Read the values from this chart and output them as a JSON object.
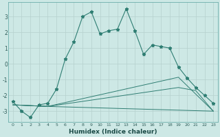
{
  "xlabel": "Humidex (Indice chaleur)",
  "background_color": "#cde8e5",
  "grid_color": "#b5d0cd",
  "line_color": "#2e7d72",
  "xlim": [
    -0.5,
    23.5
  ],
  "ylim": [
    -3.7,
    3.9
  ],
  "yticks": [
    -3,
    -2,
    -1,
    0,
    1,
    2,
    3
  ],
  "xticks": [
    0,
    1,
    2,
    3,
    4,
    5,
    6,
    7,
    8,
    9,
    10,
    11,
    12,
    13,
    14,
    15,
    16,
    17,
    18,
    19,
    20,
    21,
    22,
    23
  ],
  "line1_x": [
    0,
    1,
    2,
    3,
    4,
    5,
    6,
    7,
    8,
    9,
    10,
    11,
    12,
    13,
    14,
    15,
    16,
    17,
    18,
    19,
    20,
    21,
    22,
    23
  ],
  "line1_y": [
    -2.4,
    -3.0,
    -3.4,
    -2.6,
    -2.5,
    -1.6,
    0.3,
    1.4,
    3.0,
    3.3,
    1.9,
    2.1,
    2.2,
    3.5,
    2.1,
    0.6,
    1.2,
    1.1,
    1.0,
    -0.2,
    -0.9,
    -1.5,
    -2.0,
    -2.5
  ],
  "line2_x": [
    0,
    4,
    23
  ],
  "line2_y": [
    -2.6,
    -2.7,
    -3.0
  ],
  "line3_x": [
    0,
    4,
    19,
    23
  ],
  "line3_y": [
    -2.6,
    -2.7,
    -0.85,
    -3.0
  ],
  "line4_x": [
    0,
    4,
    19,
    21,
    23
  ],
  "line4_y": [
    -2.6,
    -2.7,
    -1.5,
    -1.7,
    -3.0
  ]
}
